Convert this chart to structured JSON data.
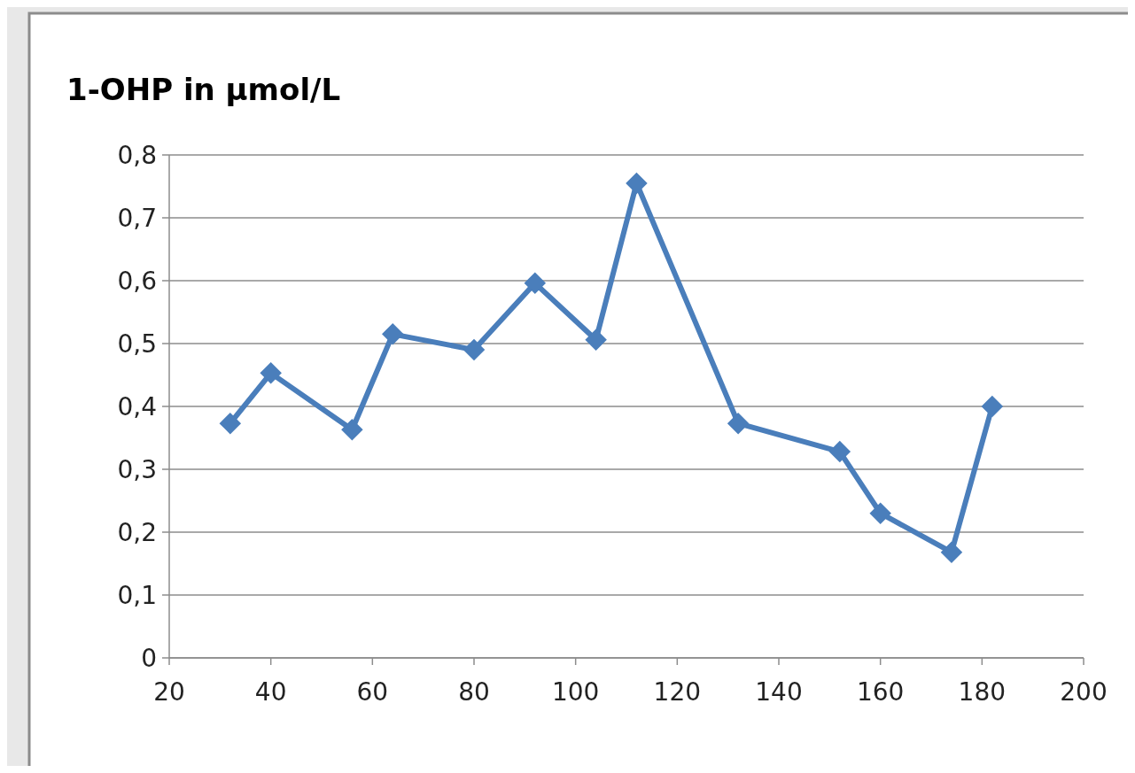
{
  "chart_data": {
    "type": "line",
    "title": "1-OHP in µmol/L",
    "x": [
      32,
      40,
      56,
      64,
      80,
      92,
      104,
      112,
      132,
      152,
      160,
      174,
      182
    ],
    "series": [
      {
        "color": "#4a7ebb",
        "values": [
          0.373,
          0.453,
          0.363,
          0.515,
          0.49,
          0.596,
          0.506,
          0.755,
          0.373,
          0.328,
          0.23,
          0.168,
          0.4
        ]
      }
    ],
    "xlim": [
      20,
      200
    ],
    "xticks": [
      20,
      40,
      60,
      80,
      100,
      120,
      140,
      160,
      180,
      200
    ],
    "ylim": [
      0,
      0.8
    ],
    "yticks": [
      {
        "value": 0,
        "label": "0"
      },
      {
        "value": 0.1,
        "label": "0,1"
      },
      {
        "value": 0.2,
        "label": "0,2"
      },
      {
        "value": 0.3,
        "label": "0,3"
      },
      {
        "value": 0.4,
        "label": "0,4"
      },
      {
        "value": 0.5,
        "label": "0,5"
      },
      {
        "value": 0.6,
        "label": "0,6"
      },
      {
        "value": 0.7,
        "label": "0,7"
      },
      {
        "value": 0.8,
        "label": "0,8"
      }
    ],
    "grid": "y",
    "marker": "diamond",
    "line_style": "solid"
  }
}
